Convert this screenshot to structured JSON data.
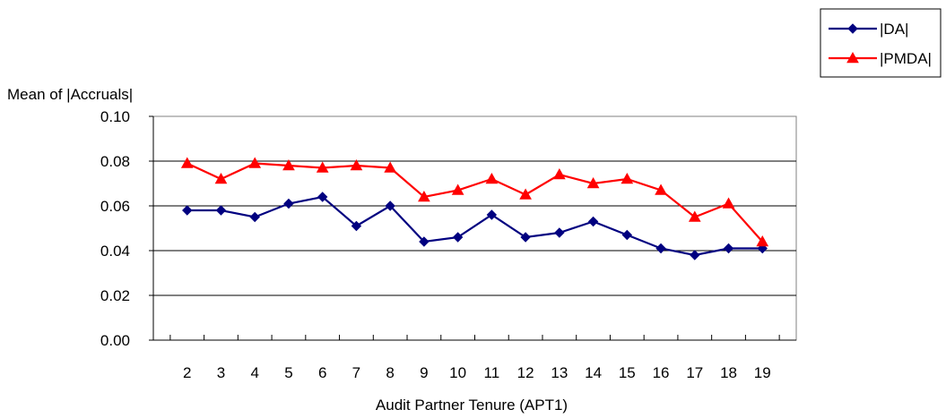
{
  "chart_data": {
    "type": "line",
    "title": "",
    "xlabel": "Audit Partner Tenure (APT1)",
    "ylabel": "Mean of |Accruals|",
    "categories": [
      "2",
      "3",
      "4",
      "5",
      "6",
      "7",
      "8",
      "9",
      "10",
      "11",
      "12",
      "13",
      "14",
      "15",
      "16",
      "17",
      "18",
      "19"
    ],
    "yticks": [
      "0.00",
      "0.02",
      "0.04",
      "0.06",
      "0.08",
      "0.10"
    ],
    "ylim": [
      0,
      0.1
    ],
    "grid": true,
    "legend_position": "top-right",
    "series": [
      {
        "name": "|DA|",
        "color": "#000080",
        "marker": "diamond",
        "values": [
          0.058,
          0.058,
          0.055,
          0.061,
          0.064,
          0.051,
          0.06,
          0.044,
          0.046,
          0.056,
          0.046,
          0.048,
          0.053,
          0.047,
          0.041,
          0.038,
          0.041,
          0.041
        ]
      },
      {
        "name": "|PMDA|",
        "color": "#FF0000",
        "marker": "triangle",
        "values": [
          0.079,
          0.072,
          0.079,
          0.078,
          0.077,
          0.078,
          0.077,
          0.064,
          0.067,
          0.072,
          0.065,
          0.074,
          0.07,
          0.072,
          0.067,
          0.055,
          0.061,
          0.044
        ]
      }
    ]
  }
}
